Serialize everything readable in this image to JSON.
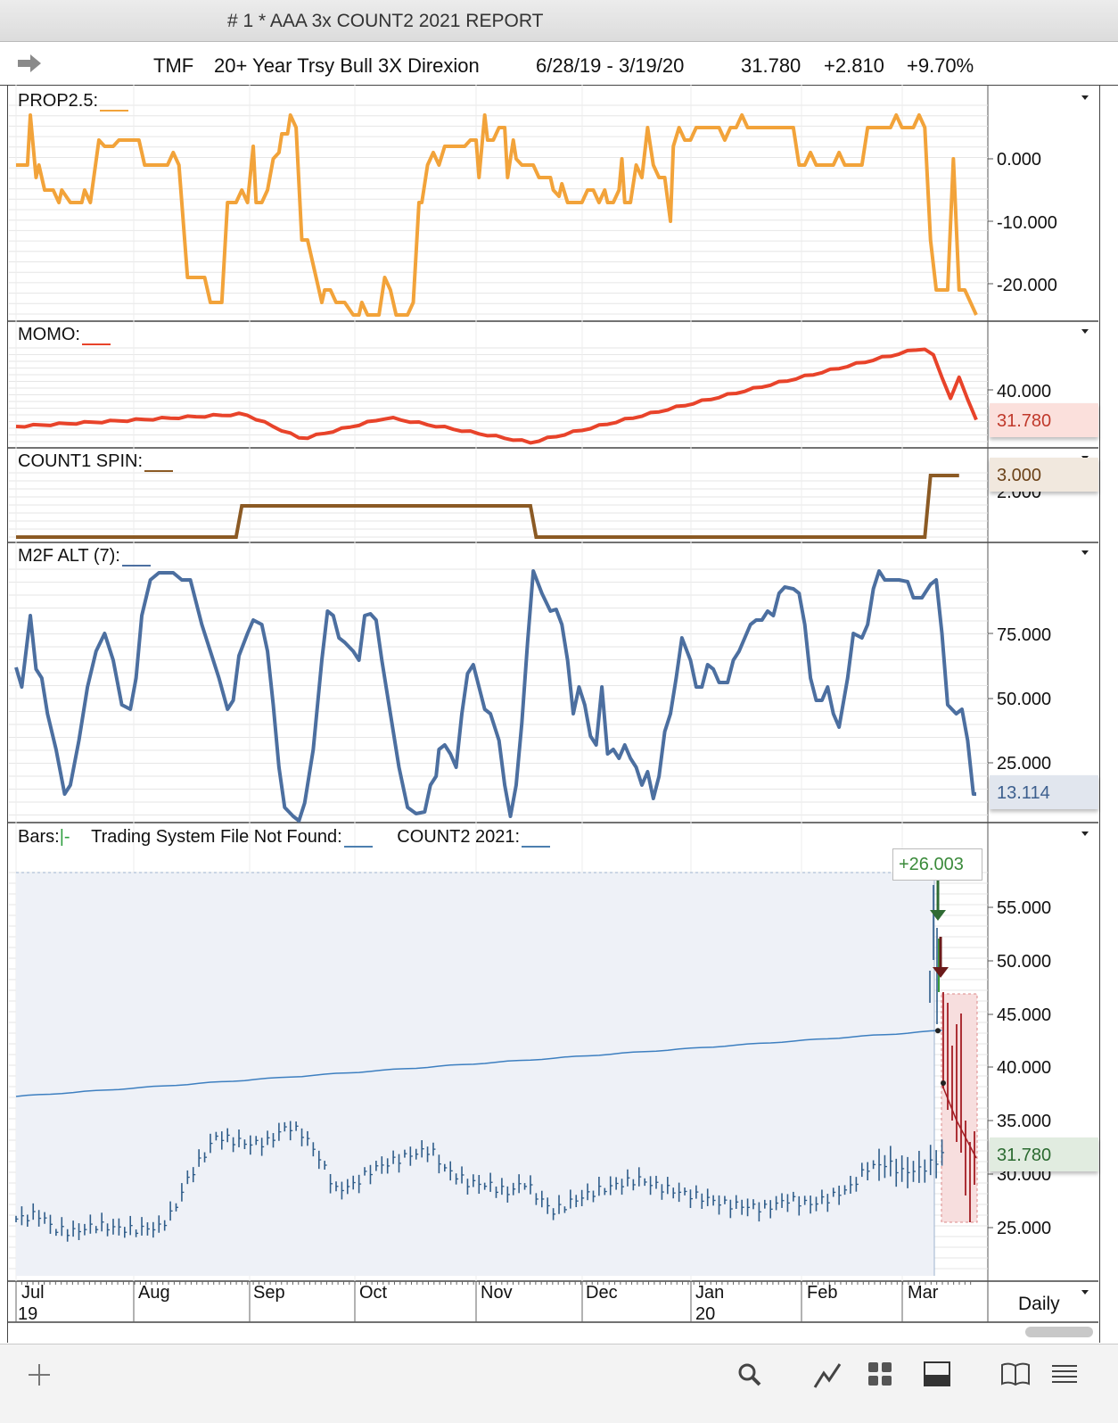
{
  "window": {
    "title": "# 1 * AAA 3x COUNT2 2021 REPORT"
  },
  "symbol_bar": {
    "symbol": "TMF",
    "description": "20+ Year Trsy Bull 3X Direxion",
    "date_range": "6/28/19 - 3/19/20",
    "last": "31.780",
    "change": "+2.810",
    "change_pct": "+9.70%",
    "icon": "forward-arrow-icon"
  },
  "panes": {
    "prop": {
      "label": "PROP2.5:",
      "color": "#F2A33A",
      "ticks": [
        "0.000",
        "-10.000",
        "-20.000"
      ]
    },
    "momo": {
      "label": "MOMO:",
      "color": "#E8432A",
      "ticks": [
        "40.000"
      ],
      "last_value": "31.780"
    },
    "count1": {
      "label": "COUNT1 SPIN:",
      "color": "#8B5A24",
      "ticks": [
        "2.000"
      ],
      "last_value": "3.000"
    },
    "m2f": {
      "label": "M2F ALT (7):",
      "color": "#4C6FA0",
      "ticks": [
        "75.000",
        "50.000",
        "25.000"
      ],
      "last_value": "13.114"
    },
    "bars": {
      "label_bars": "Bars:",
      "bars_sym": "|-",
      "label_ts": "Trading System File Not Found:",
      "label_count2": "COUNT2 2021:",
      "ticks": [
        "55.000",
        "50.000",
        "45.000",
        "40.000",
        "35.000",
        "30.000",
        "25.000"
      ],
      "last_value": "31.780",
      "trade_gain": "+26.003",
      "bar_color": "#2F5D8A",
      "ma_color": "#3D7FC0",
      "trade_color": "#A31D24"
    }
  },
  "x_axis": {
    "months": [
      "Jul",
      "Aug",
      "Sep",
      "Oct",
      "Nov",
      "Dec",
      "Jan",
      "Feb",
      "Mar"
    ],
    "years": [
      "19",
      "20"
    ],
    "interval": "Daily"
  },
  "toolbar": {
    "icons": [
      "plus-icon",
      "search-icon",
      "line-chart-icon",
      "grid-icon",
      "panel-layout-icon",
      "book-icon",
      "menu-icon"
    ]
  },
  "chart_data": [
    {
      "type": "line",
      "title": "PROP2.5",
      "ylim": [
        -25,
        7
      ],
      "x": [
        "Jul",
        "Aug",
        "Sep",
        "Oct",
        "Nov",
        "Dec",
        "Jan",
        "Feb",
        "Mar"
      ],
      "series": [
        {
          "name": "PROP2.5",
          "values": [
            [
              0,
              -1
            ],
            [
              4,
              -1
            ],
            [
              5,
              7
            ],
            [
              7,
              -3
            ],
            [
              8,
              -1
            ],
            [
              10,
              -5
            ],
            [
              13,
              -5
            ],
            [
              15,
              -7
            ],
            [
              16,
              -5
            ],
            [
              19,
              -7
            ],
            [
              23,
              -7
            ],
            [
              24,
              -5
            ],
            [
              26,
              -7
            ],
            [
              29,
              3
            ],
            [
              31,
              2
            ],
            [
              34,
              2
            ],
            [
              36,
              3
            ],
            [
              43,
              3
            ],
            [
              45,
              -1
            ],
            [
              53,
              -1
            ],
            [
              55,
              1
            ],
            [
              57,
              -1
            ],
            [
              60,
              -19
            ],
            [
              66,
              -19
            ],
            [
              68,
              -23
            ],
            [
              72,
              -23
            ],
            [
              74,
              -7
            ],
            [
              77,
              -7
            ],
            [
              79,
              -5
            ],
            [
              81,
              -7
            ],
            [
              83,
              2
            ],
            [
              84,
              -7
            ],
            [
              86,
              -7
            ],
            [
              88,
              -5
            ],
            [
              90,
              0
            ],
            [
              92,
              1
            ],
            [
              93,
              4
            ],
            [
              95,
              4
            ],
            [
              96,
              7
            ],
            [
              98,
              5
            ],
            [
              100,
              -13
            ],
            [
              102,
              -13
            ],
            [
              105,
              -19
            ],
            [
              107,
              -23
            ],
            [
              108,
              -21
            ],
            [
              110,
              -21
            ],
            [
              112,
              -23
            ],
            [
              115,
              -23
            ],
            [
              118,
              -25
            ],
            [
              120,
              -25
            ],
            [
              121,
              -23
            ],
            [
              123,
              -25
            ],
            [
              127,
              -25
            ],
            [
              129,
              -19
            ],
            [
              131,
              -21
            ],
            [
              133,
              -25
            ],
            [
              137,
              -25
            ],
            [
              139,
              -23
            ],
            [
              141,
              -7
            ],
            [
              142,
              -7
            ],
            [
              144,
              -1
            ],
            [
              146,
              1
            ],
            [
              148,
              -1
            ],
            [
              150,
              2
            ],
            [
              154,
              2
            ],
            [
              157,
              2
            ],
            [
              159,
              3
            ],
            [
              161,
              3
            ],
            [
              162,
              -3
            ],
            [
              164,
              7
            ],
            [
              165,
              3
            ],
            [
              167,
              3
            ],
            [
              169,
              5
            ],
            [
              171,
              5
            ],
            [
              172,
              -3
            ],
            [
              174,
              3
            ],
            [
              175,
              0
            ],
            [
              177,
              -1
            ],
            [
              179,
              -1
            ],
            [
              181,
              -1
            ],
            [
              183,
              -3
            ],
            [
              185,
              -3
            ],
            [
              187,
              -3
            ],
            [
              188,
              -5
            ],
            [
              190,
              -6
            ],
            [
              191,
              -4
            ],
            [
              193,
              -7
            ],
            [
              196,
              -7
            ],
            [
              198,
              -7
            ],
            [
              200,
              -5
            ],
            [
              202,
              -5
            ],
            [
              204,
              -7
            ],
            [
              206,
              -5
            ],
            [
              207,
              -7
            ],
            [
              209,
              -7
            ],
            [
              211,
              -5
            ],
            [
              212,
              0
            ],
            [
              213,
              -7
            ],
            [
              215,
              -7
            ],
            [
              217,
              -1
            ],
            [
              219,
              -3
            ],
            [
              221,
              5
            ],
            [
              223,
              -1
            ],
            [
              225,
              -3
            ],
            [
              227,
              -3
            ],
            [
              229,
              -10
            ],
            [
              230,
              2
            ],
            [
              232,
              5
            ],
            [
              234,
              3
            ],
            [
              236,
              3
            ],
            [
              238,
              5
            ],
            [
              240,
              5
            ],
            [
              242,
              5
            ],
            [
              244,
              5
            ],
            [
              246,
              5
            ],
            [
              248,
              3
            ],
            [
              250,
              5
            ],
            [
              252,
              5
            ],
            [
              254,
              7
            ],
            [
              256,
              5
            ],
            [
              258,
              5
            ],
            [
              260,
              5
            ],
            [
              262,
              5
            ],
            [
              264,
              5
            ],
            [
              266,
              5
            ],
            [
              270,
              5
            ],
            [
              272,
              5
            ],
            [
              274,
              -1
            ],
            [
              276,
              -1
            ],
            [
              278,
              1
            ],
            [
              280,
              -1
            ],
            [
              283,
              -1
            ],
            [
              286,
              -1
            ],
            [
              288,
              1
            ],
            [
              290,
              -1
            ],
            [
              293,
              -1
            ],
            [
              296,
              -1
            ],
            [
              298,
              5
            ],
            [
              300,
              5
            ],
            [
              304,
              5
            ],
            [
              306,
              5
            ],
            [
              308,
              7
            ],
            [
              310,
              5
            ],
            [
              312,
              5
            ],
            [
              314,
              5
            ],
            [
              316,
              7
            ],
            [
              318,
              5
            ],
            [
              320,
              -13
            ],
            [
              322,
              -21
            ],
            [
              324,
              -21
            ],
            [
              326,
              -21
            ],
            [
              328,
              0
            ],
            [
              330,
              -21
            ],
            [
              332,
              -21
            ],
            [
              334,
              -23
            ],
            [
              336,
              -25
            ]
          ]
        }
      ]
    },
    {
      "type": "line",
      "title": "MOMO",
      "ylim": [
        28,
        52
      ],
      "last": 31.78,
      "series": [
        {
          "name": "MOMO",
          "values": "rising-then-falling"
        }
      ]
    },
    {
      "type": "line",
      "title": "COUNT1 SPIN",
      "ylim": [
        0,
        3.4
      ],
      "series": [
        {
          "name": "COUNT1 SPIN",
          "values": "step"
        }
      ]
    },
    {
      "type": "line",
      "title": "M2F ALT (7)",
      "ylim": [
        0,
        100
      ],
      "last": 13.114,
      "series": [
        {
          "name": "M2F ALT (7)",
          "values": "oscillator"
        }
      ]
    },
    {
      "type": "bar",
      "title": "Bars",
      "ylim": [
        20,
        58
      ],
      "last": 31.78,
      "trade_gain": 26.003
    }
  ]
}
